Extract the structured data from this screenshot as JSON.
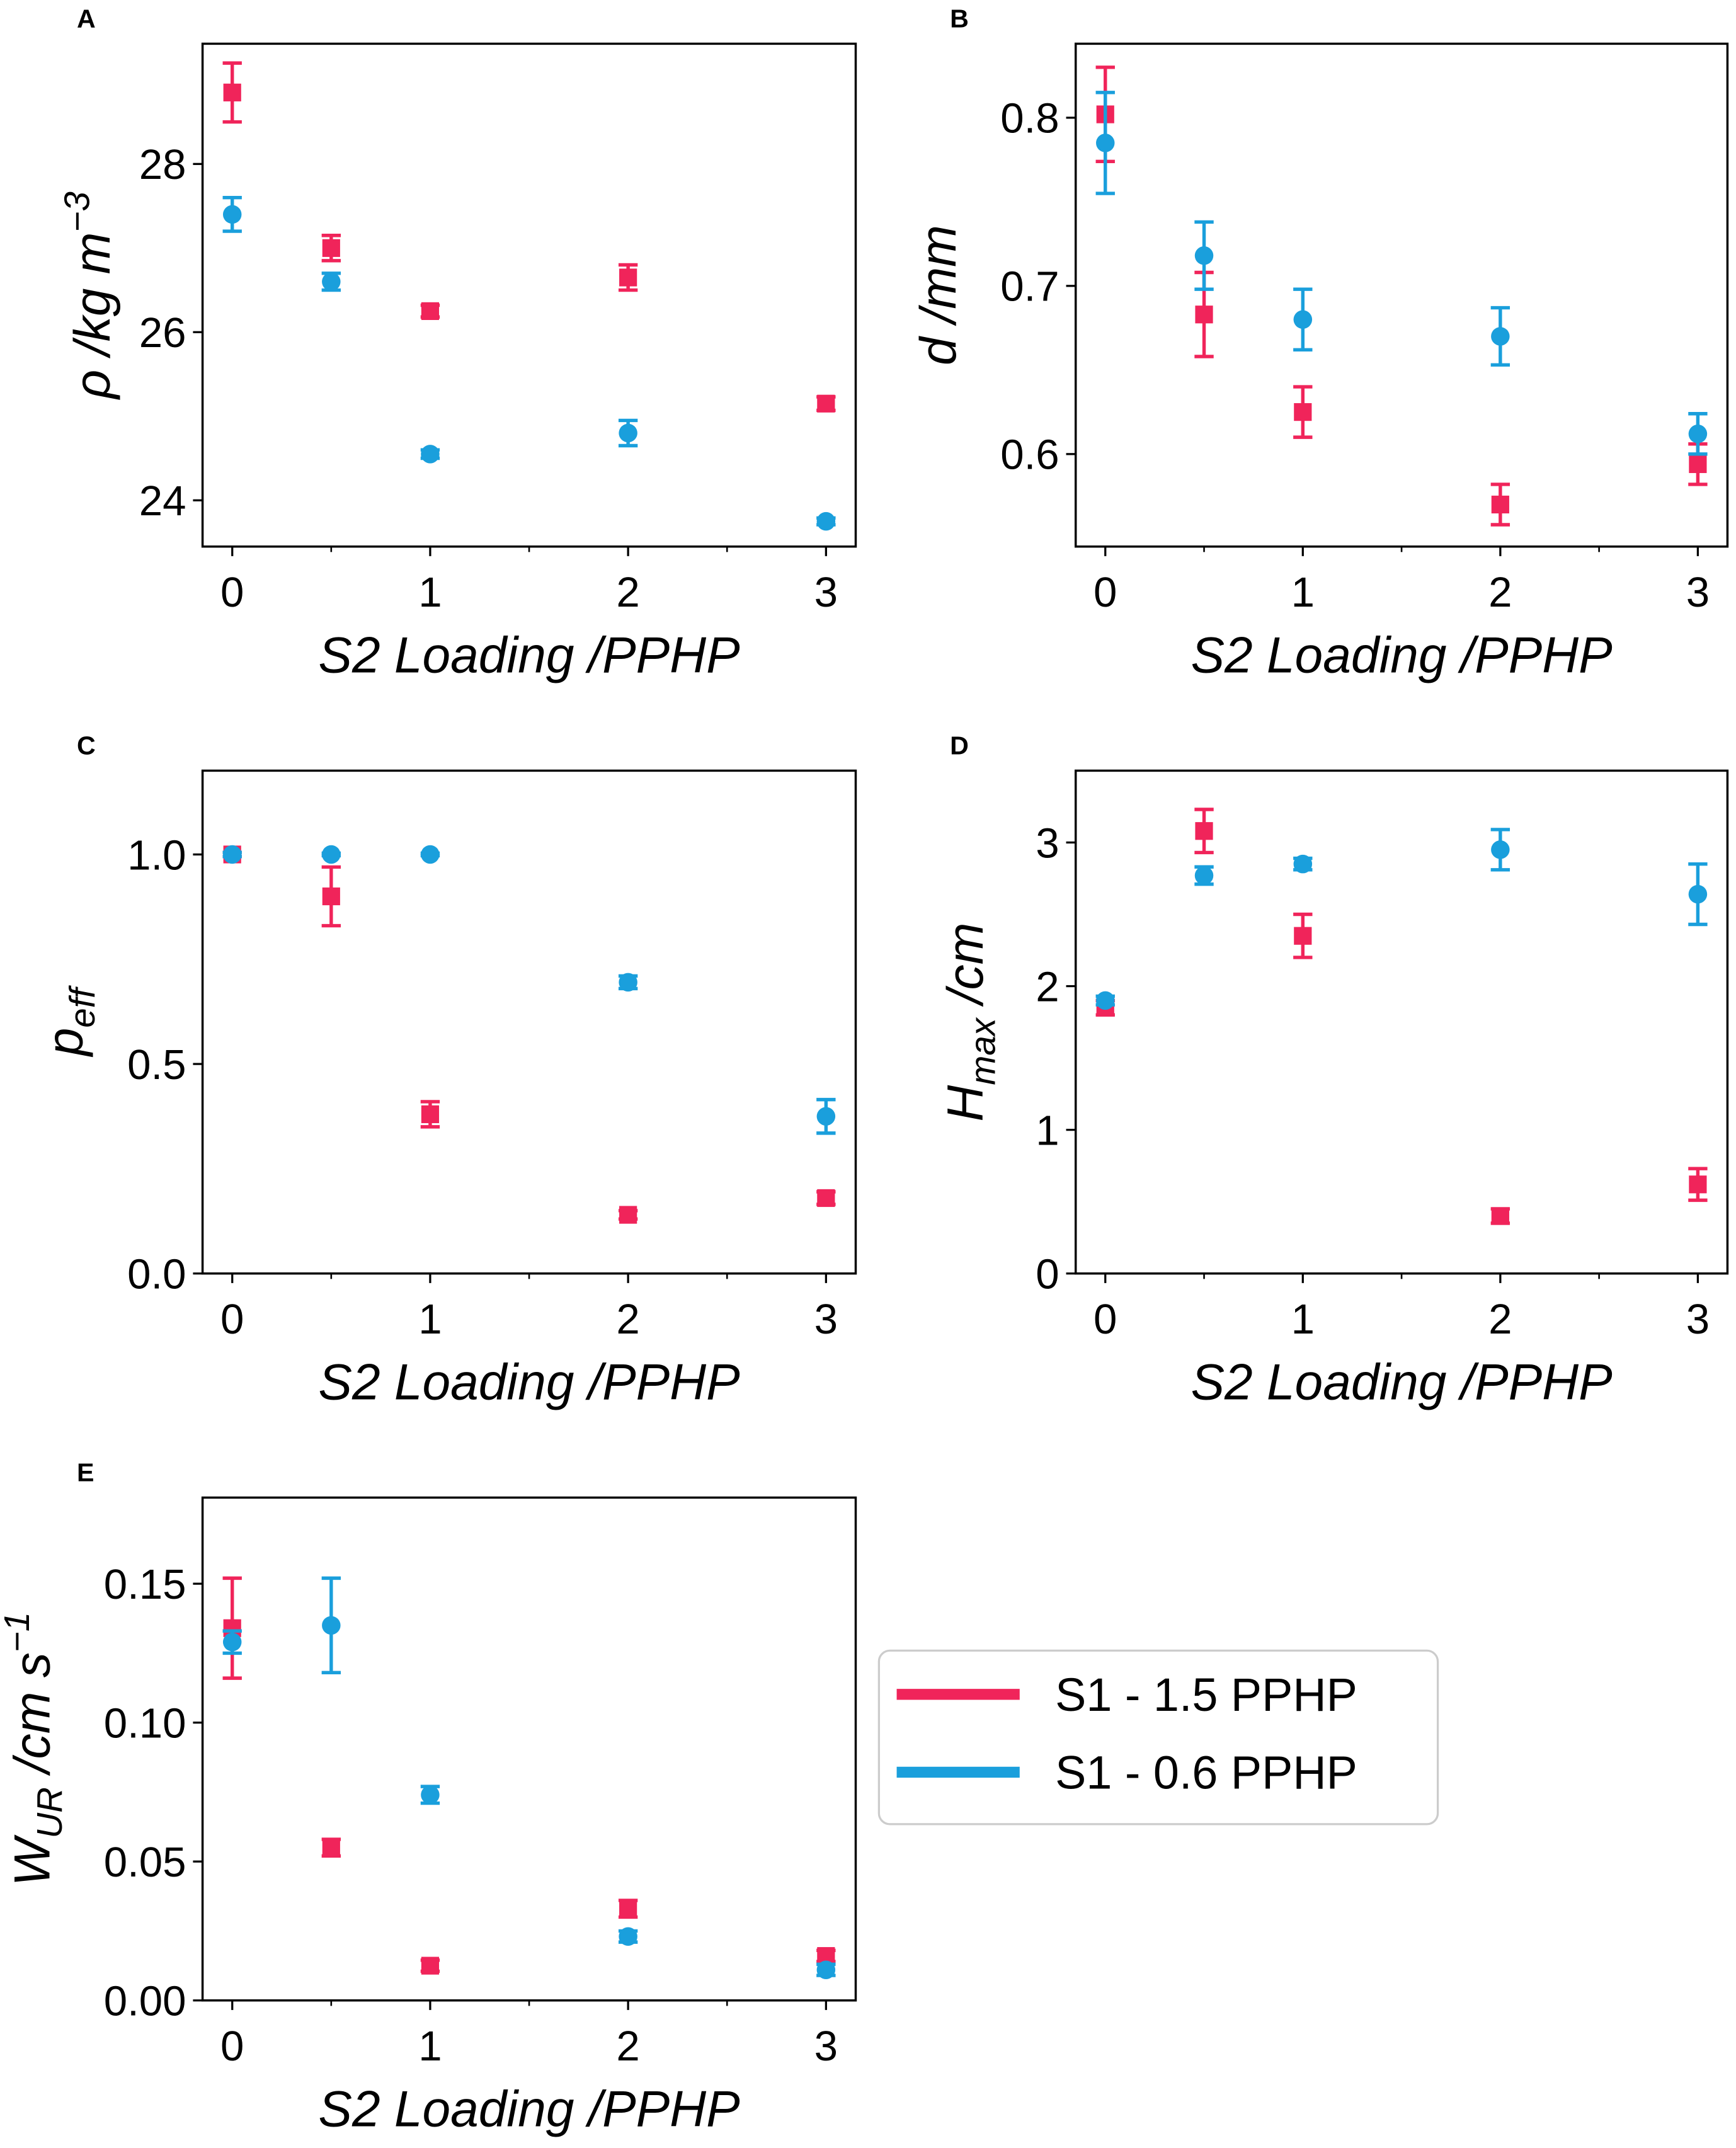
{
  "chart_data": [
    {
      "type": "scatter",
      "panel": "A",
      "xlabel": "S2 Loading /PPHP",
      "ylabel": {
        "main": "ρ /kg m",
        "sub": "",
        "sup": "−3"
      },
      "xticks": [
        0,
        1,
        2,
        3
      ],
      "yticks": [
        24,
        26,
        28
      ],
      "xlim": [
        -0.15,
        3.15
      ],
      "ylim": [
        23.45,
        29.43
      ],
      "x": [
        0,
        0.5,
        1,
        2,
        3
      ],
      "series": [
        {
          "name": "S1 - 1.5 PPHP",
          "marker": "square",
          "values": [
            28.85,
            27.0,
            26.25,
            26.65,
            25.15
          ],
          "errors": [
            0.35,
            0.15,
            0.07,
            0.15,
            0.08
          ]
        },
        {
          "name": "S1 - 0.6 PPHP",
          "marker": "circle",
          "values": [
            27.4,
            26.6,
            24.55,
            24.8,
            23.75
          ],
          "errors": [
            0.2,
            0.1,
            0.05,
            0.15,
            0.04
          ]
        }
      ]
    },
    {
      "type": "scatter",
      "panel": "B",
      "xlabel": "S2 Loading /PPHP",
      "ylabel": {
        "main": "d /mm",
        "sub": "",
        "sup": ""
      },
      "xticks": [
        0,
        1,
        2,
        3
      ],
      "yticks": [
        0.6,
        0.7,
        0.8
      ],
      "xlim": [
        -0.15,
        3.15
      ],
      "ylim": [
        0.545,
        0.844
      ],
      "x": [
        0,
        0.5,
        1,
        2,
        3
      ],
      "series": [
        {
          "name": "S1 - 1.5 PPHP",
          "marker": "square",
          "values": [
            0.802,
            0.683,
            0.625,
            0.57,
            0.594
          ],
          "errors": [
            0.028,
            0.025,
            0.015,
            0.012,
            0.012
          ]
        },
        {
          "name": "S1 - 0.6 PPHP",
          "marker": "circle",
          "values": [
            0.785,
            0.718,
            0.68,
            0.67,
            0.612
          ],
          "errors": [
            0.03,
            0.02,
            0.018,
            0.017,
            0.012
          ]
        }
      ]
    },
    {
      "type": "scatter",
      "panel": "C",
      "xlabel": "S2 Loading /PPHP",
      "ylabel": {
        "main": "p",
        "sub": "eff",
        "sup": ""
      },
      "xticks": [
        0,
        1,
        2,
        3
      ],
      "yticks": [
        0.0,
        0.5,
        1.0
      ],
      "xlim": [
        -0.15,
        3.15
      ],
      "ylim": [
        0,
        1.2
      ],
      "x": [
        0,
        0.5,
        1,
        2,
        3
      ],
      "series": [
        {
          "name": "S1 - 1.5 PPHP",
          "marker": "square",
          "values": [
            1.0,
            0.9,
            0.38,
            0.14,
            0.18
          ],
          "errors": [
            0.005,
            0.07,
            0.03,
            0.01,
            0.015
          ]
        },
        {
          "name": "S1 - 0.6 PPHP",
          "marker": "circle",
          "values": [
            1.0,
            1.0,
            1.0,
            0.695,
            0.375
          ],
          "errors": [
            0.005,
            0.003,
            0.003,
            0.015,
            0.04
          ]
        }
      ]
    },
    {
      "type": "scatter",
      "panel": "D",
      "xlabel": "S2 Loading /PPHP",
      "ylabel": {
        "main": "H",
        "sub": "max",
        "rest": " /cm",
        "sup": ""
      },
      "xticks": [
        0,
        1,
        2,
        3
      ],
      "yticks": [
        0,
        1,
        2,
        3
      ],
      "xlim": [
        -0.15,
        3.15
      ],
      "ylim": [
        0,
        3.5
      ],
      "x": [
        0,
        0.5,
        1,
        2,
        3
      ],
      "series": [
        {
          "name": "S1 - 1.5 PPHP",
          "marker": "square",
          "values": [
            1.85,
            3.08,
            2.35,
            0.4,
            0.62
          ],
          "errors": [
            0.05,
            0.15,
            0.15,
            0.05,
            0.11
          ]
        },
        {
          "name": "S1 - 0.6 PPHP",
          "marker": "circle",
          "values": [
            1.9,
            2.77,
            2.85,
            2.95,
            2.64
          ],
          "errors": [
            0.03,
            0.06,
            0.04,
            0.14,
            0.21
          ]
        }
      ]
    },
    {
      "type": "scatter",
      "panel": "E",
      "xlabel": "S2 Loading /PPHP",
      "ylabel": {
        "main": "W",
        "sub": "UR",
        "rest": " /cm s",
        "sup": "−1"
      },
      "xticks": [
        0,
        1,
        2,
        3
      ],
      "yticks": [
        0.0,
        0.05,
        0.1,
        0.15
      ],
      "ytick_decimals": 2,
      "xlim": [
        -0.15,
        3.15
      ],
      "ylim": [
        0,
        0.181
      ],
      "x": [
        0,
        0.5,
        1,
        2,
        3
      ],
      "series": [
        {
          "name": "S1 - 1.5 PPHP",
          "marker": "square",
          "values": [
            0.134,
            0.055,
            0.0125,
            0.033,
            0.016
          ],
          "errors": [
            0.018,
            0.003,
            0.002,
            0.003,
            0.002
          ]
        },
        {
          "name": "S1 - 0.6 PPHP",
          "marker": "circle",
          "values": [
            0.129,
            0.135,
            0.074,
            0.023,
            0.011
          ],
          "errors": [
            0.004,
            0.017,
            0.003,
            0.002,
            0.002
          ]
        }
      ]
    }
  ],
  "legend": {
    "placement": "bottom-right",
    "entries": [
      {
        "label": "S1 - 1.5 PPHP",
        "color": "#f0245a"
      },
      {
        "label": "S1 - 0.6 PPHP",
        "color": "#1a9fdc"
      }
    ]
  },
  "colors": {
    "series": [
      "#f0245a",
      "#1a9fdc"
    ]
  }
}
